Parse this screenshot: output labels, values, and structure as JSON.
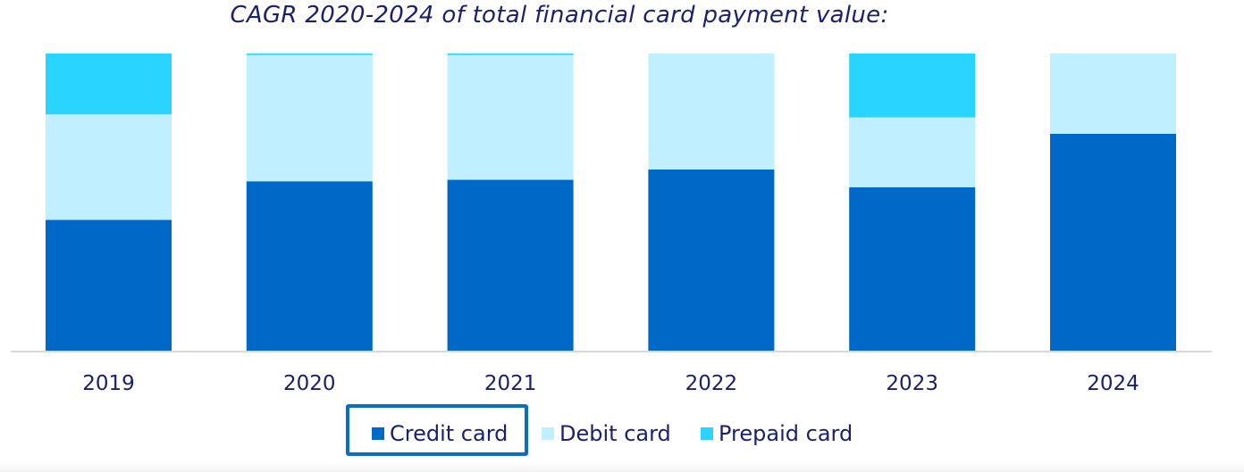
{
  "chart_data": {
    "type": "bar",
    "stacked": true,
    "title": "CAGR 2020-2024 of total financial card payment value:",
    "categories": [
      "2019",
      "2020",
      "2021",
      "2022",
      "2023",
      "2024"
    ],
    "series": [
      {
        "name": "Credit card",
        "color": "#0068c6",
        "values": [
          44,
          57,
          57.5,
          61,
          55,
          73
        ]
      },
      {
        "name": "Debit card",
        "color": "#c0efff",
        "values": [
          35.5,
          42.5,
          42,
          39,
          23.5,
          27
        ]
      },
      {
        "name": "Prepaid card",
        "color": "#29d4ff",
        "values": [
          20.5,
          0.5,
          0.5,
          0,
          21.5,
          0
        ]
      }
    ],
    "ylim": [
      0,
      100
    ],
    "grid": false,
    "legend_position": "bottom"
  }
}
